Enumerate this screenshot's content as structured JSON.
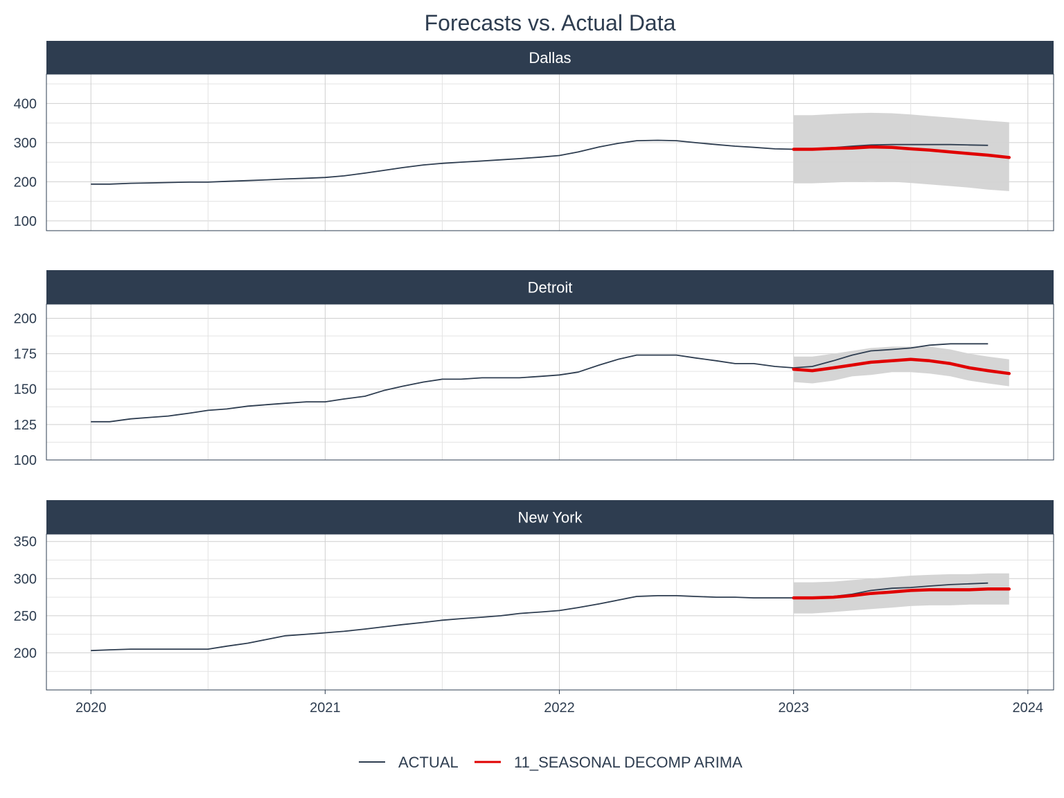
{
  "chart_data": {
    "type": "line",
    "title": "Forecasts vs. Actual Data",
    "x_ticks": [
      "2020",
      "2021",
      "2022",
      "2023",
      "2024"
    ],
    "xlim": [
      2019.81,
      2024.11
    ],
    "legend": {
      "position": "bottom",
      "entries": [
        {
          "label": "ACTUAL",
          "color": "#2e3d50"
        },
        {
          "label": "11_SEASONAL DECOMP ARIMA",
          "color": "#e00000"
        }
      ]
    },
    "colors": {
      "actual": "#2e3d50",
      "forecast": "#e00000",
      "interval": "#d3d3d3",
      "strip": "#2e3d50",
      "grid": "#cfcfcf"
    },
    "panels": [
      {
        "name": "Dallas",
        "ylim": [
          75,
          475
        ],
        "y_ticks": [
          100,
          200,
          300,
          400
        ],
        "actual": {
          "x": [
            2020.0,
            2020.08,
            2020.17,
            2020.25,
            2020.33,
            2020.42,
            2020.5,
            2020.58,
            2020.67,
            2020.75,
            2020.83,
            2020.92,
            2021.0,
            2021.08,
            2021.17,
            2021.25,
            2021.33,
            2021.42,
            2021.5,
            2021.58,
            2021.67,
            2021.75,
            2021.83,
            2021.92,
            2022.0,
            2022.08,
            2022.17,
            2022.25,
            2022.33,
            2022.42,
            2022.5,
            2022.58,
            2022.67,
            2022.75,
            2022.83,
            2022.92,
            2023.0,
            2023.08,
            2023.17,
            2023.25,
            2023.33,
            2023.42,
            2023.5,
            2023.58,
            2023.67,
            2023.75,
            2023.83
          ],
          "y": [
            194,
            194,
            196,
            197,
            198,
            199,
            199,
            201,
            203,
            205,
            207,
            209,
            211,
            215,
            222,
            229,
            236,
            243,
            247,
            250,
            253,
            256,
            259,
            263,
            267,
            276,
            289,
            298,
            305,
            306,
            305,
            300,
            295,
            291,
            288,
            284,
            283,
            284,
            287,
            291,
            294,
            295,
            295,
            295,
            295,
            294,
            293
          ]
        },
        "forecast": {
          "x": [
            2023.0,
            2023.08,
            2023.17,
            2023.25,
            2023.33,
            2023.42,
            2023.5,
            2023.58,
            2023.67,
            2023.75,
            2023.83,
            2023.92
          ],
          "y": [
            283,
            283,
            285,
            286,
            289,
            288,
            284,
            281,
            276,
            272,
            268,
            262
          ],
          "lower": [
            196,
            196,
            198,
            200,
            201,
            200,
            197,
            193,
            189,
            185,
            180,
            176
          ],
          "upper": [
            370,
            370,
            373,
            375,
            376,
            375,
            372,
            368,
            364,
            360,
            356,
            352
          ]
        }
      },
      {
        "name": "Detroit",
        "ylim": [
          100,
          210
        ],
        "y_ticks": [
          100,
          125,
          150,
          175,
          200
        ],
        "actual": {
          "x": [
            2020.0,
            2020.08,
            2020.17,
            2020.25,
            2020.33,
            2020.42,
            2020.5,
            2020.58,
            2020.67,
            2020.75,
            2020.83,
            2020.92,
            2021.0,
            2021.08,
            2021.17,
            2021.25,
            2021.33,
            2021.42,
            2021.5,
            2021.58,
            2021.67,
            2021.75,
            2021.83,
            2021.92,
            2022.0,
            2022.08,
            2022.17,
            2022.25,
            2022.33,
            2022.42,
            2022.5,
            2022.58,
            2022.67,
            2022.75,
            2022.83,
            2022.92,
            2023.0,
            2023.08,
            2023.17,
            2023.25,
            2023.33,
            2023.42,
            2023.5,
            2023.58,
            2023.67,
            2023.75,
            2023.83
          ],
          "y": [
            127,
            127,
            129,
            130,
            131,
            133,
            135,
            136,
            138,
            139,
            140,
            141,
            141,
            143,
            145,
            149,
            152,
            155,
            157,
            157,
            158,
            158,
            158,
            159,
            160,
            162,
            167,
            171,
            174,
            174,
            174,
            172,
            170,
            168,
            168,
            166,
            165,
            166,
            170,
            174,
            177,
            178,
            179,
            181,
            182,
            182,
            182
          ]
        },
        "forecast": {
          "x": [
            2023.0,
            2023.08,
            2023.17,
            2023.25,
            2023.33,
            2023.42,
            2023.5,
            2023.58,
            2023.67,
            2023.75,
            2023.83,
            2023.92
          ],
          "y": [
            164,
            163,
            165,
            167,
            169,
            170,
            171,
            170,
            168,
            165,
            163,
            161
          ],
          "lower": [
            155,
            154,
            156,
            159,
            160,
            162,
            162,
            161,
            159,
            156,
            154,
            152
          ],
          "upper": [
            173,
            173,
            175,
            177,
            179,
            180,
            180,
            180,
            178,
            175,
            173,
            171
          ]
        }
      },
      {
        "name": "New York",
        "ylim": [
          150,
          360
        ],
        "y_ticks": [
          200,
          250,
          300,
          350
        ],
        "actual": {
          "x": [
            2020.0,
            2020.08,
            2020.17,
            2020.25,
            2020.33,
            2020.42,
            2020.5,
            2020.58,
            2020.67,
            2020.75,
            2020.83,
            2020.92,
            2021.0,
            2021.08,
            2021.17,
            2021.25,
            2021.33,
            2021.42,
            2021.5,
            2021.58,
            2021.67,
            2021.75,
            2021.83,
            2021.92,
            2022.0,
            2022.08,
            2022.17,
            2022.25,
            2022.33,
            2022.42,
            2022.5,
            2022.58,
            2022.67,
            2022.75,
            2022.83,
            2022.92,
            2023.0,
            2023.08,
            2023.17,
            2023.25,
            2023.33,
            2023.42,
            2023.5,
            2023.58,
            2023.67,
            2023.75,
            2023.83
          ],
          "y": [
            203,
            204,
            205,
            205,
            205,
            205,
            205,
            209,
            213,
            218,
            223,
            225,
            227,
            229,
            232,
            235,
            238,
            241,
            244,
            246,
            248,
            250,
            253,
            255,
            257,
            261,
            266,
            271,
            276,
            277,
            277,
            276,
            275,
            275,
            274,
            274,
            274,
            274,
            276,
            279,
            284,
            287,
            288,
            290,
            292,
            293,
            294
          ]
        },
        "forecast": {
          "x": [
            2023.0,
            2023.08,
            2023.17,
            2023.25,
            2023.33,
            2023.42,
            2023.5,
            2023.58,
            2023.67,
            2023.75,
            2023.83,
            2023.92
          ],
          "y": [
            274,
            274,
            275,
            277,
            280,
            282,
            284,
            285,
            285,
            285,
            286,
            286
          ],
          "lower": [
            253,
            253,
            255,
            257,
            259,
            261,
            263,
            264,
            264,
            265,
            265,
            265
          ],
          "upper": [
            295,
            295,
            296,
            298,
            300,
            302,
            304,
            305,
            306,
            306,
            307,
            307
          ]
        }
      }
    ]
  }
}
